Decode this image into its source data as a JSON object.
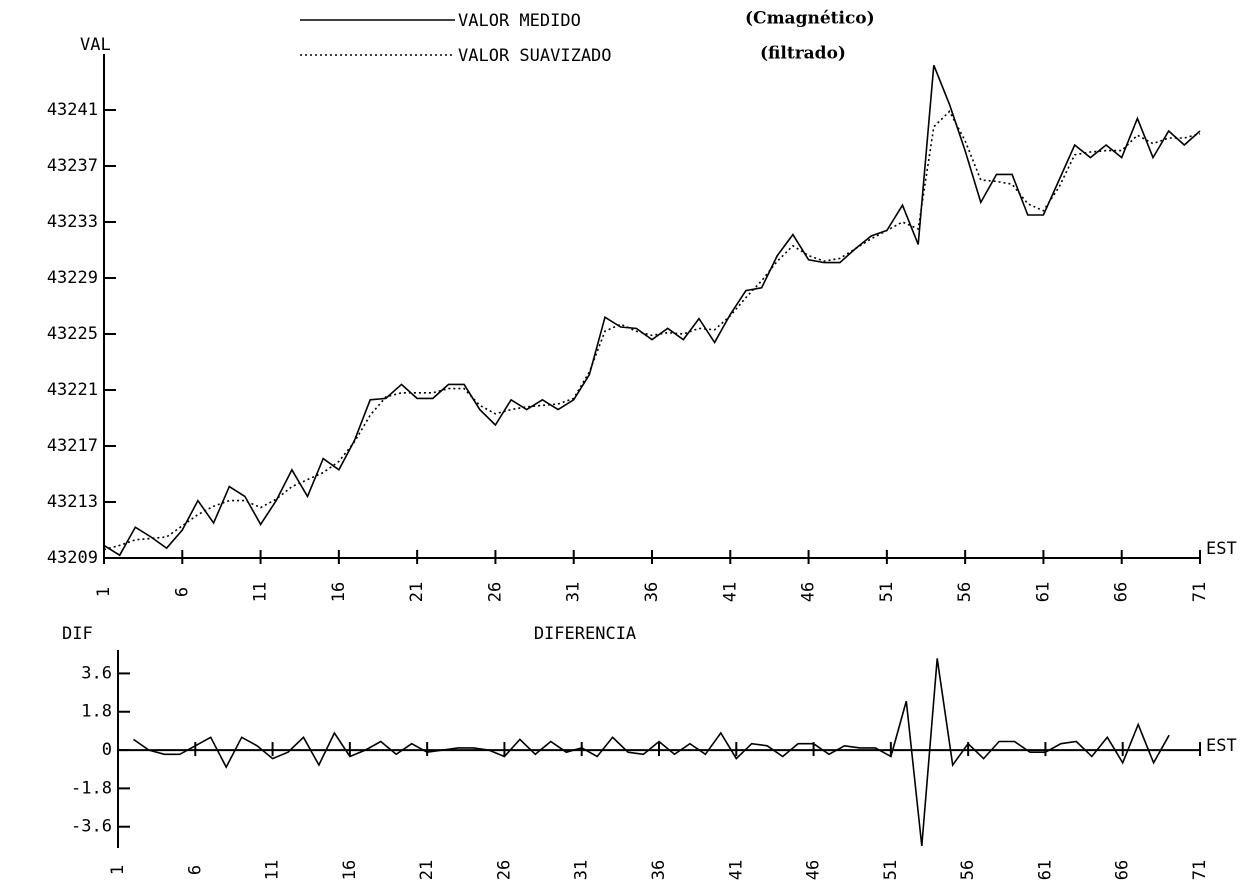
{
  "chart_data": [
    {
      "type": "line",
      "legend": [
        "VALOR MEDIDO",
        "VALOR SUAVIZADO"
      ],
      "annotations": [
        "(Cmagnético)",
        "(filtrado)"
      ],
      "y_label": "VAL",
      "x_label": "EST",
      "x": [
        1,
        2,
        3,
        4,
        5,
        6,
        7,
        8,
        9,
        10,
        11,
        12,
        13,
        14,
        15,
        16,
        17,
        18,
        19,
        20,
        21,
        22,
        23,
        24,
        25,
        26,
        27,
        28,
        29,
        30,
        31,
        32,
        33,
        34,
        35,
        36,
        37,
        38,
        39,
        40,
        41,
        42,
        43,
        44,
        45,
        46,
        47,
        48,
        49,
        50,
        51,
        52,
        53,
        54,
        55,
        56,
        57,
        58,
        59,
        60,
        61,
        62,
        63,
        64,
        65,
        66,
        67,
        68,
        69,
        70,
        71
      ],
      "xlim": [
        1,
        71
      ],
      "xticks": [
        1,
        6,
        11,
        16,
        21,
        26,
        31,
        36,
        41,
        46,
        51,
        56,
        61,
        66,
        71
      ],
      "ylim": [
        43209,
        43245
      ],
      "yticks": [
        43209,
        43213,
        43217,
        43221,
        43225,
        43229,
        43233,
        43237,
        43241
      ],
      "series": [
        {
          "name": "VALOR MEDIDO",
          "color": "#000000",
          "line_style": "solid",
          "values": [
            43209.9,
            43209.2,
            43211.2,
            43210.5,
            43209.7,
            43211,
            43213.1,
            43211.5,
            43214.1,
            43213.4,
            43211.4,
            43213.1,
            43215.3,
            43213.4,
            43216.1,
            43215.3,
            43217.4,
            43220.3,
            43220.4,
            43221.4,
            43220.4,
            43220.4,
            43221.4,
            43221.4,
            43219.6,
            43218.5,
            43220.3,
            43219.6,
            43220.3,
            43219.6,
            43220.3,
            43222.1,
            43226.2,
            43225.5,
            43225.4,
            43224.6,
            43225.4,
            43224.6,
            43226.1,
            43224.4,
            43226.4,
            43228.1,
            43228.3,
            43230.6,
            43232.1,
            43230.3,
            43230.1,
            43230.1,
            43231.1,
            43232,
            43232.4,
            43234.2,
            43231.4,
            43244.2,
            43241.4,
            43238.1,
            43234.4,
            43236.4,
            43236.4,
            43233.5,
            43233.5,
            43236,
            43238.5,
            43237.6,
            43238.5,
            43237.6,
            43240.4,
            43237.6,
            43239.5,
            43238.5,
            43239.5
          ]
        },
        {
          "name": "VALOR SUAVIZADO",
          "color": "#000000",
          "line_style": "dotted",
          "values": [
            43209.6,
            43209.9,
            43210.3,
            43210.4,
            43210.5,
            43211.3,
            43212.1,
            43212.7,
            43213.1,
            43213.1,
            43212.6,
            43213.2,
            43214.1,
            43214.6,
            43215.1,
            43215.9,
            43217.3,
            43219.2,
            43220.5,
            43220.8,
            43220.8,
            43220.8,
            43221.1,
            43221.1,
            43219.9,
            43219.3,
            43219.6,
            43219.8,
            43219.9,
            43220,
            43220.4,
            43222.3,
            43225.2,
            43225.7,
            43225.2,
            43224.9,
            43225.1,
            43225,
            43225.4,
            43225.3,
            43226.3,
            43227.6,
            43228.8,
            43230.2,
            43231.3,
            43230.6,
            43230.2,
            43230.4,
            43231.1,
            43231.8,
            43232.4,
            43233,
            43232.5,
            43239.8,
            43240.9,
            43238.8,
            43236,
            43235.9,
            43235.7,
            43234.3,
            43233.8,
            43235.5,
            43237.8,
            43238,
            43238.1,
            43238.1,
            43239.2,
            43238.6,
            43239,
            43239,
            43239.3
          ]
        }
      ]
    },
    {
      "type": "line",
      "title": "DIFERENCIA",
      "y_label": "DIF",
      "x_label": "EST",
      "x": [
        1,
        2,
        3,
        4,
        5,
        6,
        7,
        8,
        9,
        10,
        11,
        12,
        13,
        14,
        15,
        16,
        17,
        18,
        19,
        20,
        21,
        22,
        23,
        24,
        25,
        26,
        27,
        28,
        29,
        30,
        31,
        32,
        33,
        34,
        35,
        36,
        37,
        38,
        39,
        40,
        41,
        42,
        43,
        44,
        45,
        46,
        47,
        48,
        49,
        50,
        51,
        52,
        53,
        54,
        55,
        56,
        57,
        58,
        59,
        60,
        61,
        62,
        63,
        64,
        65,
        66,
        67,
        68,
        69,
        70,
        71
      ],
      "xlim": [
        1,
        71
      ],
      "xticks": [
        1,
        6,
        11,
        16,
        21,
        26,
        31,
        36,
        41,
        46,
        51,
        56,
        61,
        66,
        71
      ],
      "ylim": [
        -4.6,
        4.7
      ],
      "yticks": [
        3.6,
        1.8,
        0,
        -1.8,
        -3.6
      ],
      "series": [
        {
          "name": "DIFERENCIA",
          "color": "#000000",
          "line_style": "solid",
          "values": [
            null,
            0.5,
            0,
            -0.2,
            -0.2,
            0.2,
            0.6,
            -0.8,
            0.6,
            0.2,
            -0.4,
            -0.1,
            0.6,
            -0.7,
            0.8,
            -0.3,
            0,
            0.4,
            -0.2,
            0.3,
            -0.1,
            0,
            0.1,
            0.1,
            0,
            -0.3,
            0.5,
            -0.2,
            0.4,
            -0.1,
            0.1,
            -0.3,
            0.6,
            -0.1,
            -0.2,
            0.4,
            -0.2,
            0.3,
            -0.2,
            0.8,
            -0.4,
            0.3,
            0.2,
            -0.3,
            0.3,
            0.3,
            -0.2,
            0.2,
            0.1,
            0.1,
            -0.3,
            2.3,
            -4.5,
            4.3,
            -0.7,
            0.3,
            -0.4,
            0.4,
            0.4,
            -0.1,
            -0.1,
            0.3,
            0.4,
            -0.3,
            0.6,
            -0.6,
            1.2,
            -0.6,
            0.7,
            null,
            null
          ]
        }
      ]
    }
  ]
}
